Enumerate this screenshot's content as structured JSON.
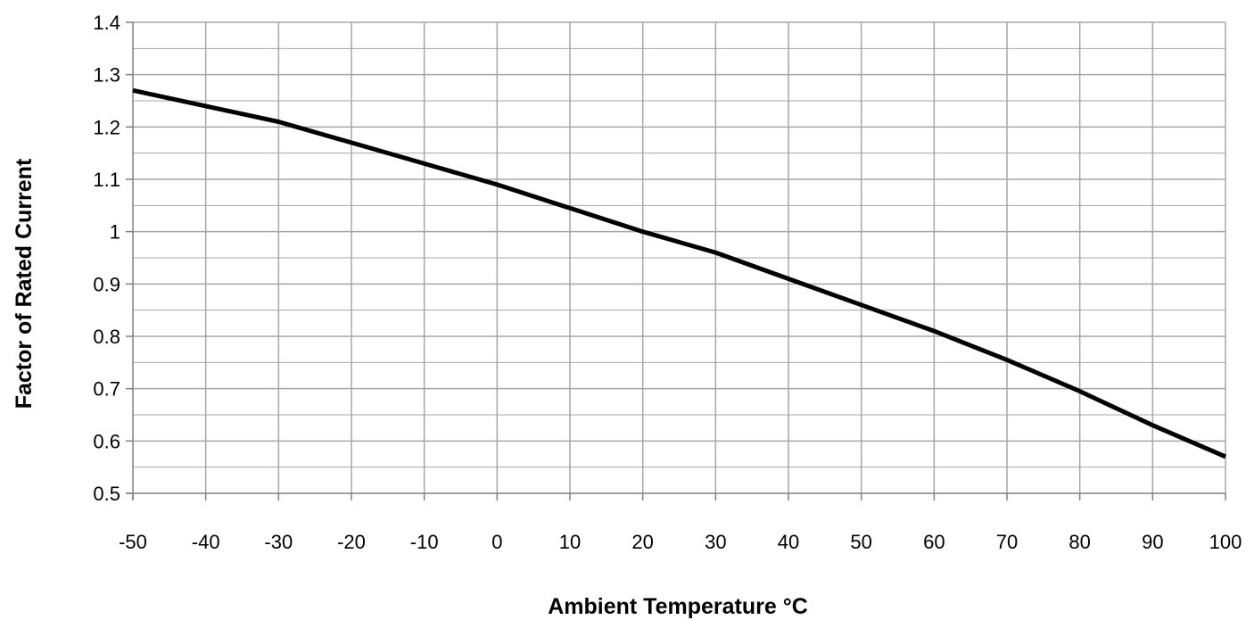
{
  "chart_data": {
    "type": "line",
    "title": "",
    "xlabel": "Ambient Temperature °C",
    "ylabel": "Factor of Rated Current",
    "xlim": [
      -50,
      100
    ],
    "ylim": [
      0.5,
      1.4
    ],
    "x_ticks": [
      -50,
      -40,
      -30,
      -20,
      -10,
      0,
      10,
      20,
      30,
      40,
      50,
      60,
      70,
      80,
      90,
      100
    ],
    "x_tick_labels": [
      "-50",
      "-40",
      "-30",
      "-20",
      "-10",
      "0",
      "10",
      "20",
      "30",
      "40",
      "50",
      "60",
      "70",
      "80",
      "90",
      "100"
    ],
    "y_ticks": [
      0.5,
      0.6,
      0.7,
      0.8,
      0.9,
      1.0,
      1.1,
      1.2,
      1.3,
      1.4
    ],
    "y_tick_labels": [
      "0.5",
      "0.6",
      "0.7",
      "0.8",
      "0.9",
      "1",
      "1.1",
      "1.2",
      "1.3",
      "1.4"
    ],
    "y_minor_step": 0.05,
    "grid": true,
    "legend": "none",
    "line_color": "#000000",
    "grid_color": "#a6a6a6",
    "series": [
      {
        "x": [
          -50,
          -40,
          -30,
          -20,
          -10,
          0,
          10,
          20,
          30,
          40,
          50,
          60,
          70,
          80,
          90,
          100
        ],
        "y": [
          1.27,
          1.24,
          1.21,
          1.17,
          1.13,
          1.09,
          1.045,
          1.0,
          0.96,
          0.91,
          0.86,
          0.81,
          0.755,
          0.695,
          0.63,
          0.57
        ]
      }
    ]
  }
}
